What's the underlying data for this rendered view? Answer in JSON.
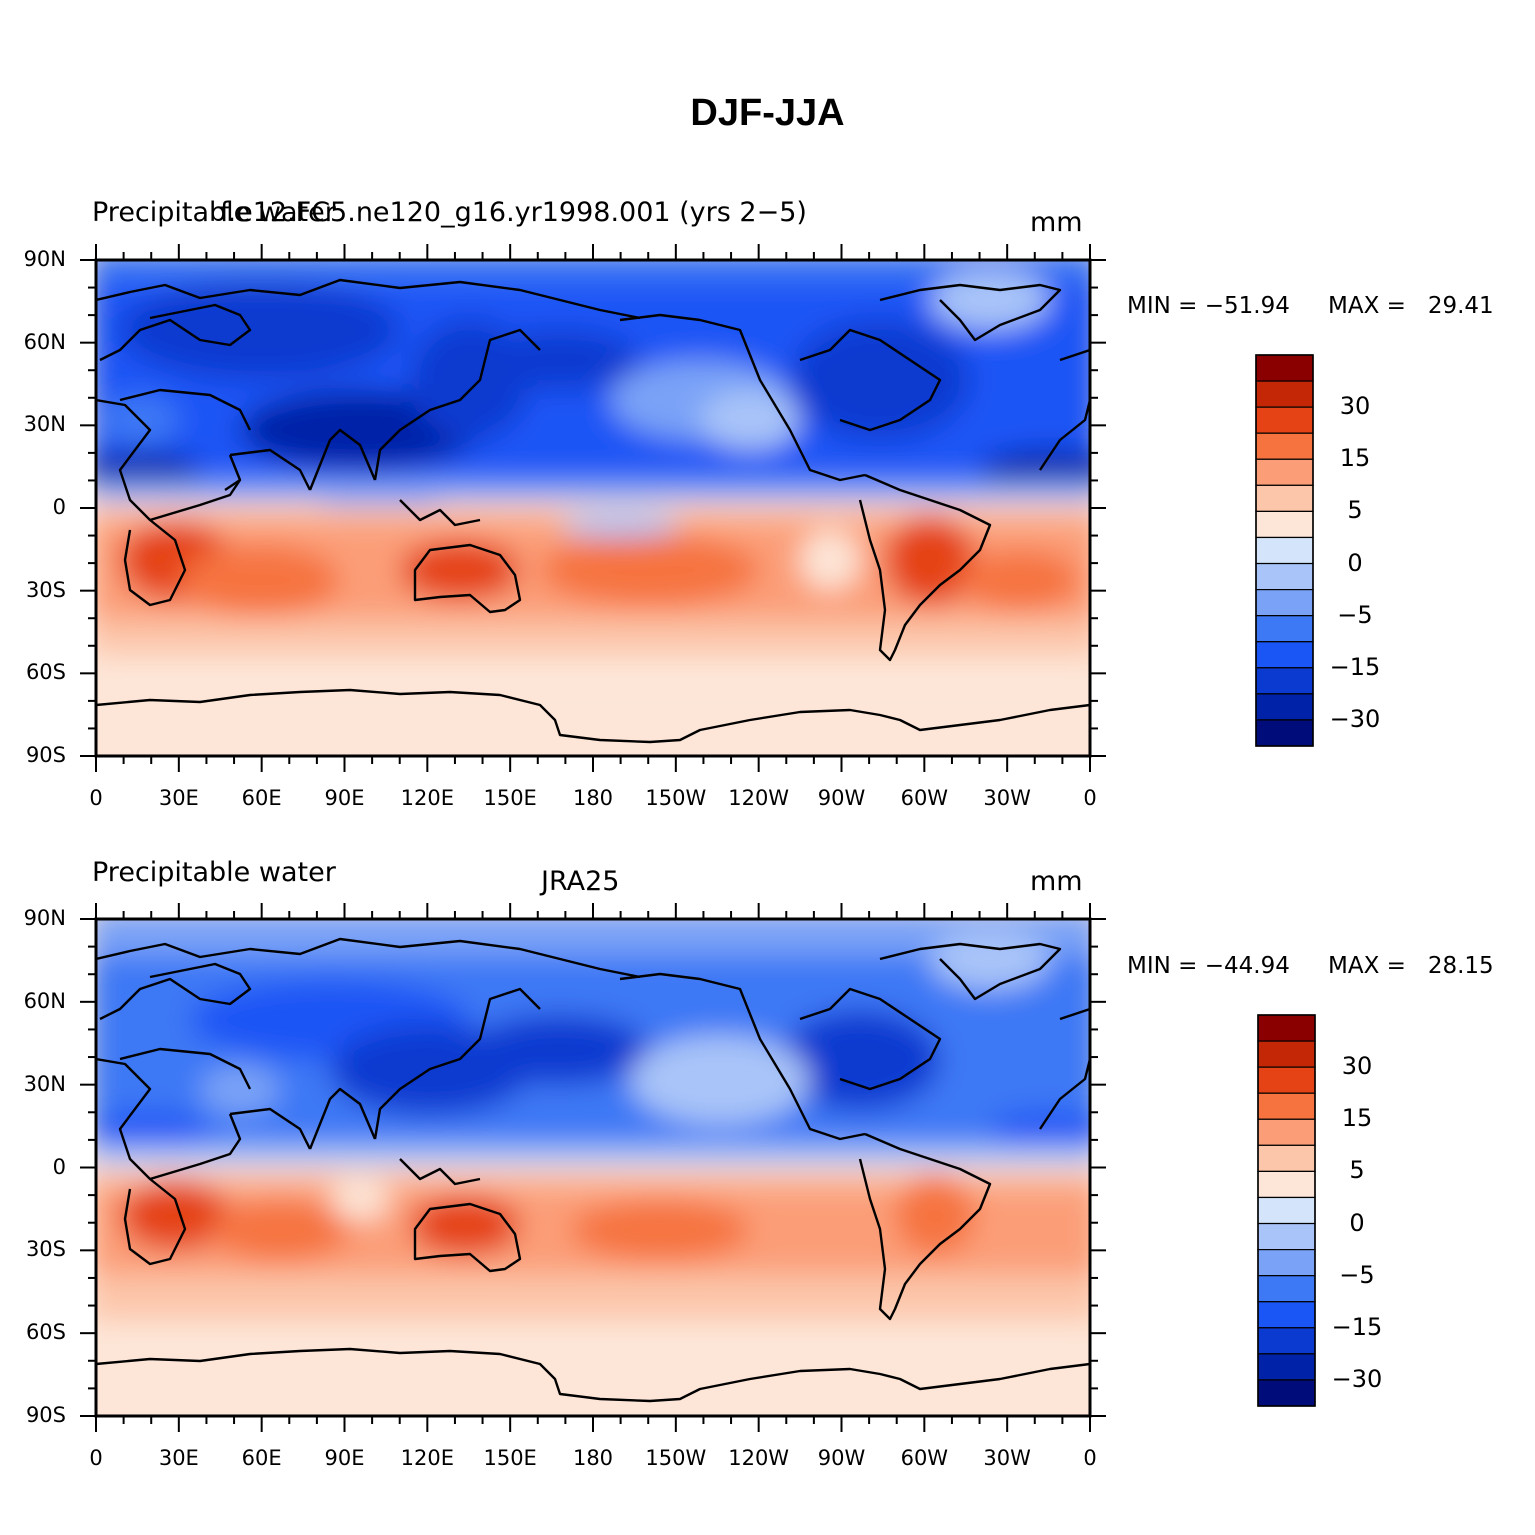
{
  "title": "DJF-JJA",
  "palette": [
    "#000c7a",
    "#0022a8",
    "#0a3ad0",
    "#1a55f5",
    "#3d78f5",
    "#7aa3f7",
    "#a9c4f8",
    "#d4e5fb",
    "#fde6d8",
    "#fcc6aa",
    "#fb9e78",
    "#f6733f",
    "#e54316",
    "#c42705",
    "#8a0000"
  ],
  "colorbar": {
    "labels": [
      "30",
      "15",
      "5",
      "0",
      "-5",
      "-15",
      "-30"
    ]
  },
  "panels": [
    {
      "id": "model",
      "left_label": "Precipitable water",
      "center_label": "f.e12.FC5.ne120_g16.yr1998.001 (yrs 2−5)",
      "units": "mm",
      "min_label": "MIN = −51.94",
      "max_label": "MAX =   29.41",
      "min": -51.94,
      "max": 29.41
    },
    {
      "id": "obs",
      "left_label": "Precipitable water",
      "center_label": "JRA25",
      "units": "mm",
      "min_label": "MIN = −44.94",
      "max_label": "MAX =   28.15",
      "min": -44.94,
      "max": 28.15
    }
  ],
  "axes": {
    "lat_labels": [
      "90N",
      "60N",
      "30N",
      "0",
      "30S",
      "60S",
      "90S"
    ],
    "lon_labels": [
      "0",
      "30E",
      "60E",
      "90E",
      "120E",
      "150E",
      "180",
      "150W",
      "120W",
      "90W",
      "60W",
      "30W",
      "0"
    ]
  }
}
